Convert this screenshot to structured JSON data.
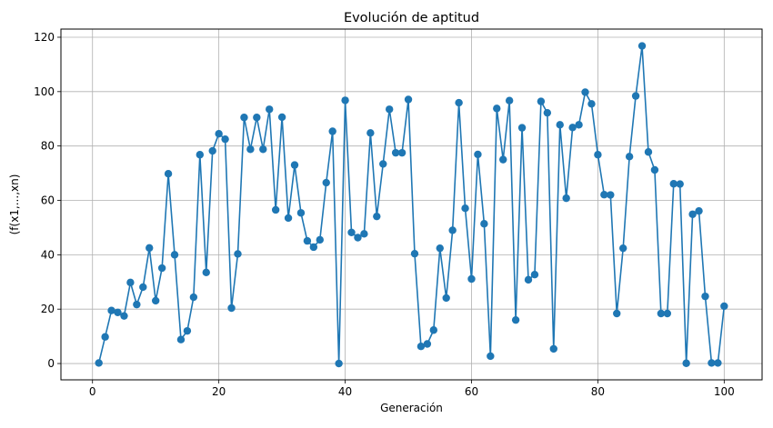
{
  "chart_data": {
    "type": "line",
    "title": "Evolución de aptitud",
    "xlabel": "Generación",
    "ylabel": "(f(x1,...,xn)",
    "xlim": [
      -5,
      106
    ],
    "ylim": [
      -6,
      123
    ],
    "xticks": [
      0,
      20,
      40,
      60,
      80,
      100
    ],
    "yticks": [
      0,
      20,
      40,
      60,
      80,
      100,
      120
    ],
    "grid": true,
    "color": "#1f77b4",
    "marker": "circle",
    "series": [
      {
        "x": [
          1,
          2,
          3,
          4,
          5,
          6,
          7,
          8,
          9,
          10,
          11,
          12,
          13,
          14,
          15,
          16,
          17,
          18,
          19,
          20,
          21,
          22,
          23,
          24,
          25,
          26,
          27,
          28,
          29,
          30,
          31,
          32,
          33,
          34,
          35,
          36,
          37,
          38,
          39,
          40,
          41,
          42,
          43,
          44,
          45,
          46,
          47,
          48,
          49,
          50,
          51,
          52,
          53,
          54,
          55,
          56,
          57,
          58,
          59,
          60,
          61,
          62,
          63,
          64,
          65,
          66,
          67,
          68,
          69,
          70,
          71,
          72,
          73,
          74,
          75,
          76,
          77,
          78,
          79,
          80,
          81,
          82,
          83,
          84,
          85,
          86,
          87,
          88,
          89,
          90,
          91,
          92,
          93,
          94,
          95,
          96,
          97,
          98,
          99,
          100
        ],
        "values": [
          0.2,
          9.8,
          19.5,
          18.8,
          17.5,
          29.8,
          21.7,
          28.1,
          42.5,
          23.1,
          35.1,
          69.8,
          40.0,
          8.8,
          12.0,
          24.4,
          76.8,
          33.5,
          78.2,
          84.5,
          82.5,
          20.4,
          40.3,
          90.5,
          78.8,
          90.5,
          78.8,
          93.5,
          56.5,
          90.6,
          53.5,
          73.0,
          55.4,
          45.1,
          42.8,
          45.5,
          66.5,
          85.4,
          0.0,
          96.8,
          48.2,
          46.3,
          47.7,
          84.8,
          54.1,
          73.4,
          93.5,
          77.5,
          77.5,
          97.1,
          40.4,
          6.3,
          7.2,
          12.3,
          42.4,
          24.1,
          49.0,
          95.9,
          57.1,
          31.1,
          76.9,
          51.4,
          2.7,
          93.8,
          75.0,
          96.7,
          16.0,
          86.7,
          30.8,
          32.7,
          96.4,
          92.2,
          5.4,
          87.8,
          60.8,
          86.8,
          87.8,
          99.8,
          95.5,
          76.8,
          62.1,
          62.0,
          18.4,
          42.4,
          76.1,
          98.4,
          116.8,
          77.8,
          71.2,
          18.4,
          18.4,
          66.1,
          66.0,
          0.1,
          54.9,
          56.1,
          24.7,
          0.2,
          0.2,
          21.1
        ]
      }
    ]
  }
}
